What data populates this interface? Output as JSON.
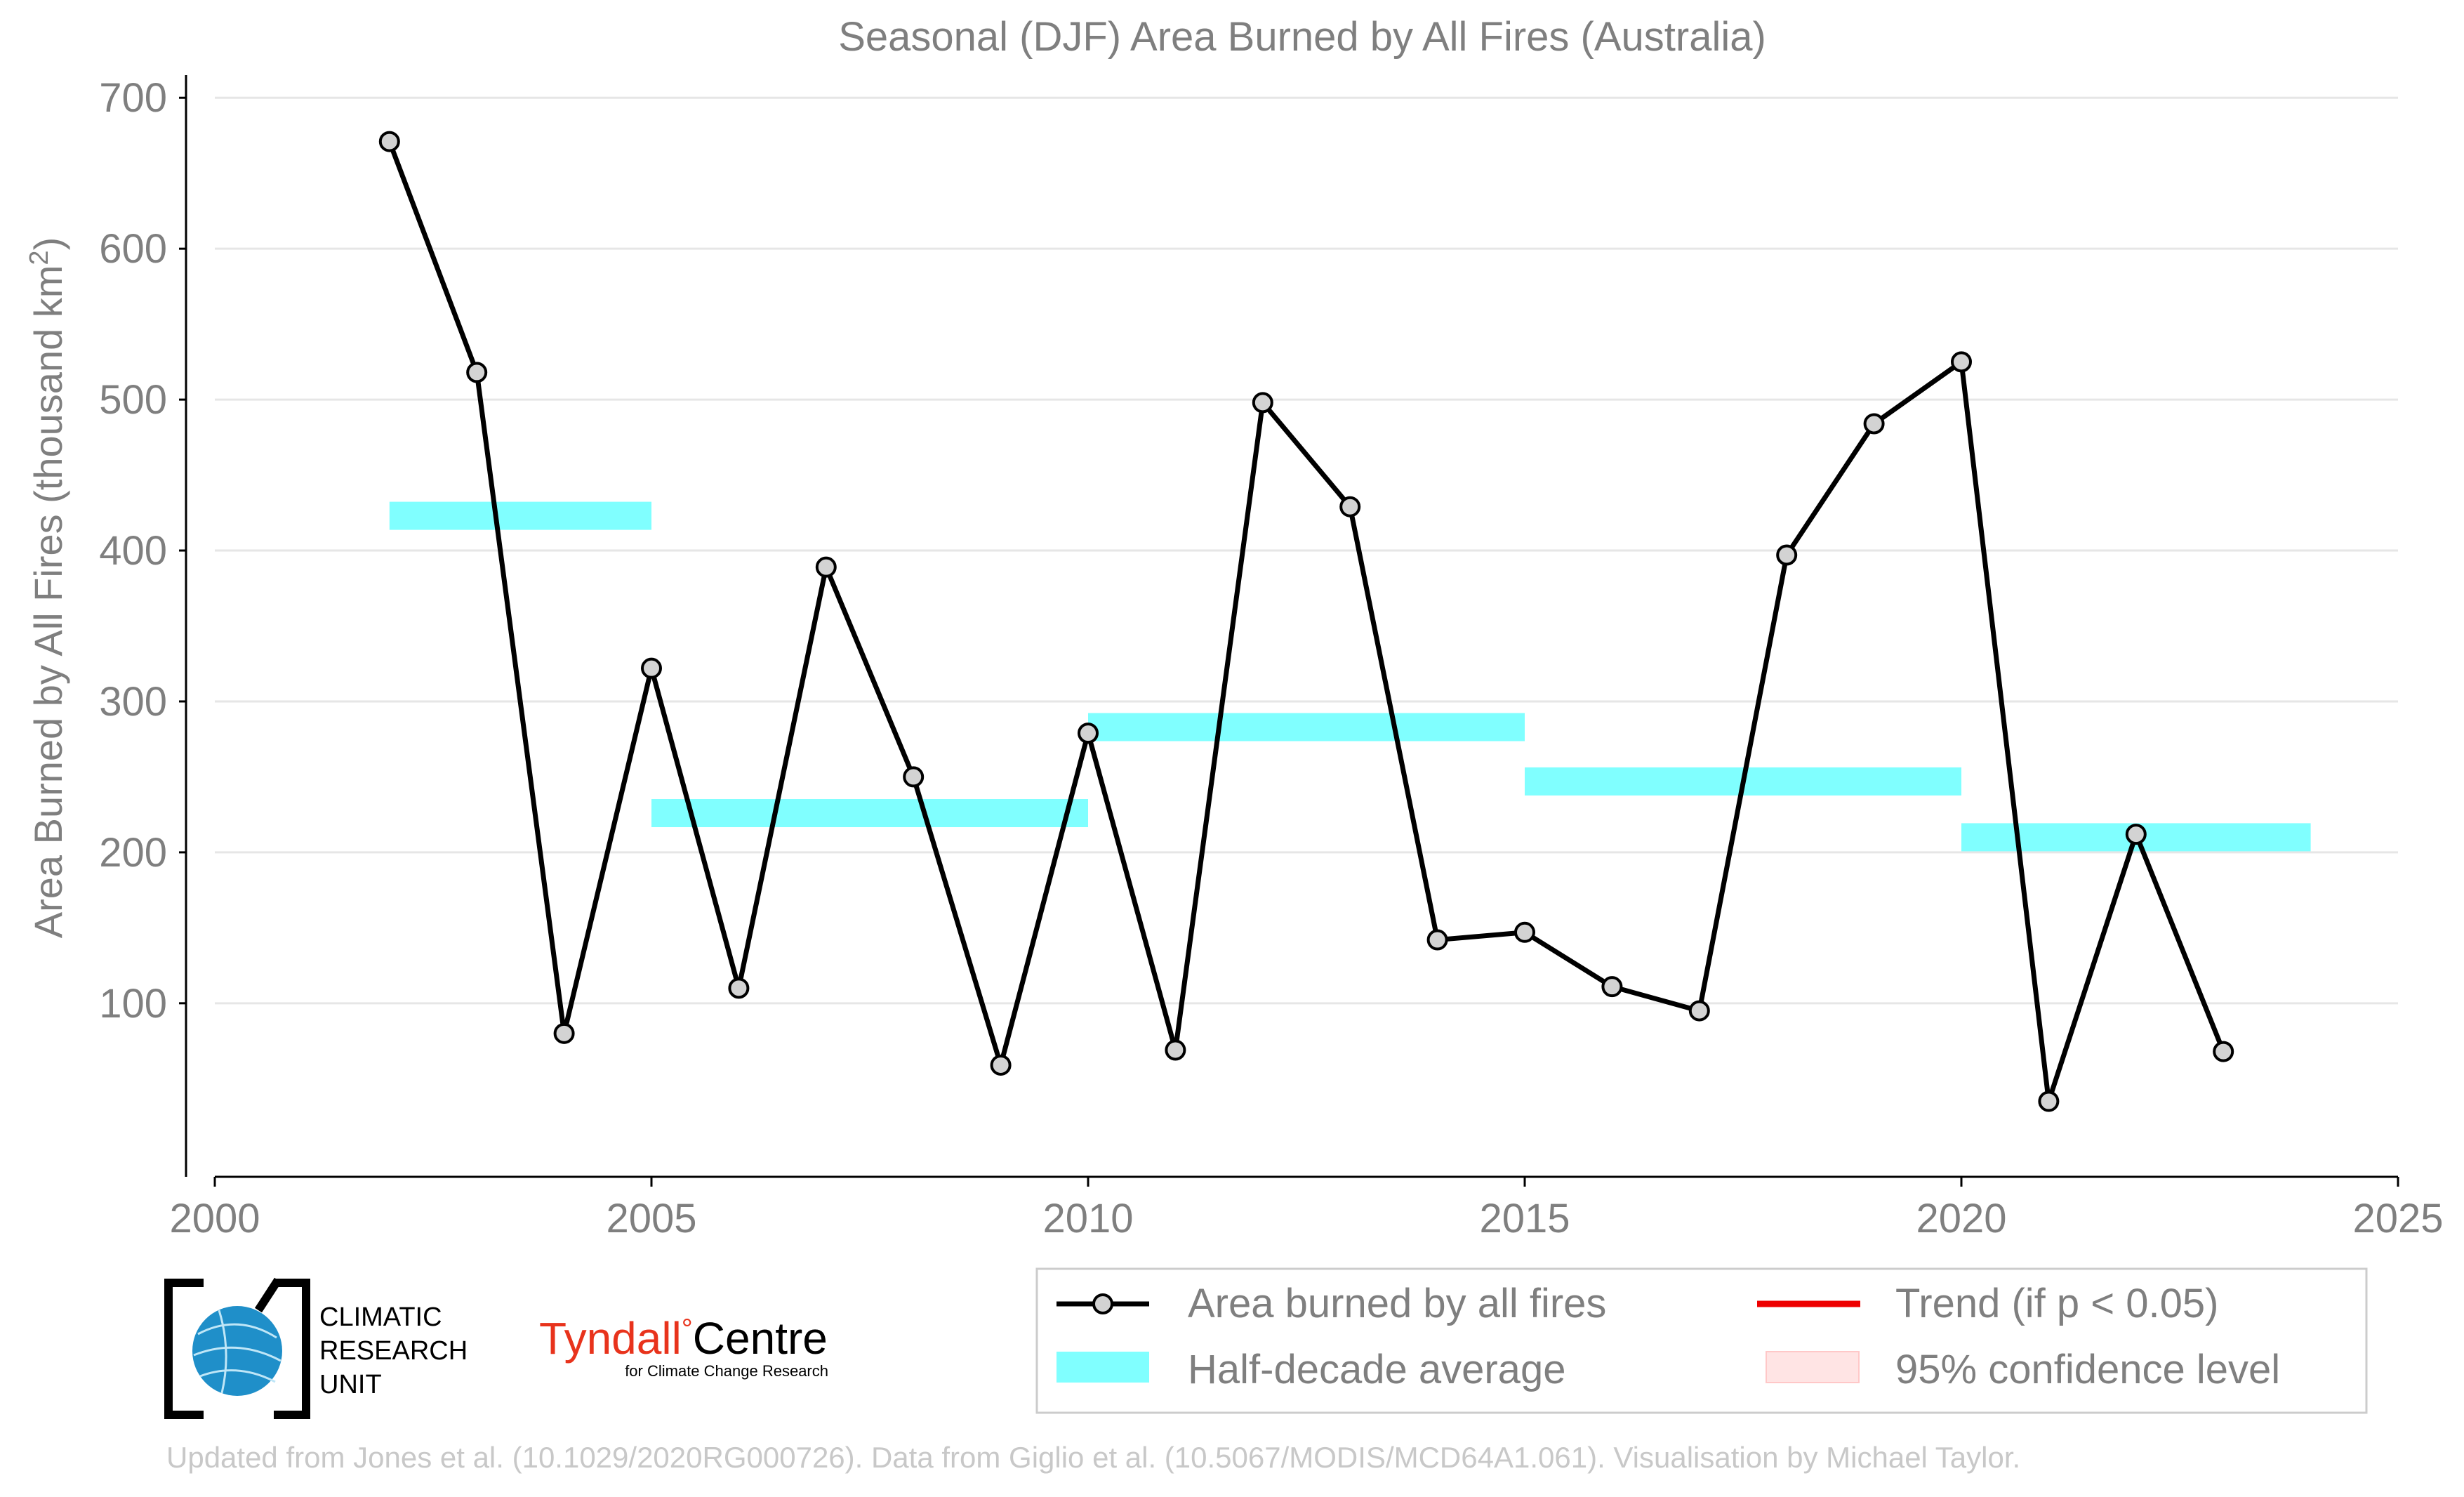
{
  "chart_data": {
    "type": "line",
    "title": "Seasonal (DJF) Area Burned by All Fires (Australia)",
    "ylabel": "Area Burned by All Fires (thousand km",
    "ylabel_superscript": "2",
    "ylabel_suffix": ")",
    "xlabel": "",
    "xlim": [
      2000,
      2025
    ],
    "ylim": [
      -15,
      715
    ],
    "x_ticks": [
      2000,
      2005,
      2010,
      2015,
      2020,
      2025
    ],
    "y_ticks": [
      100,
      200,
      300,
      400,
      500,
      600,
      700
    ],
    "grid": "horizontal",
    "legend_position": "bottom-right",
    "series": [
      {
        "name": "Area burned by all fires",
        "color": "#000000",
        "marker_fill": "#d3d3d3",
        "x": [
          2002,
          2003,
          2004,
          2005,
          2006,
          2007,
          2008,
          2009,
          2010,
          2011,
          2012,
          2013,
          2014,
          2015,
          2016,
          2017,
          2018,
          2019,
          2020,
          2021,
          2022,
          2023
        ],
        "y": [
          671,
          518,
          80,
          322,
          110,
          389,
          250,
          59,
          279,
          69,
          498,
          429,
          142,
          147,
          111,
          95,
          397,
          484,
          525,
          35,
          212,
          68
        ]
      }
    ],
    "half_decade_average": {
      "name": "Half-decade average",
      "color": "#80ffff",
      "segments": [
        {
          "x_start": 2002,
          "x_end": 2005,
          "y": 423
        },
        {
          "x_start": 2005,
          "x_end": 2010,
          "y": 226
        },
        {
          "x_start": 2010,
          "x_end": 2015,
          "y": 283
        },
        {
          "x_start": 2015,
          "x_end": 2020,
          "y": 247
        },
        {
          "x_start": 2020,
          "x_end": 2024,
          "y": 210
        }
      ]
    },
    "legend": [
      {
        "label": "Area burned by all fires",
        "kind": "line-marker",
        "color": "#000000"
      },
      {
        "label": "Trend (if p < 0.05)",
        "kind": "line",
        "color": "#ee0000"
      },
      {
        "label": "Half-decade average",
        "kind": "patch",
        "color": "#80ffff"
      },
      {
        "label": "95% confidence level",
        "kind": "patch",
        "color": "#ffe4e4"
      }
    ]
  },
  "logos": {
    "cru": {
      "line1": "CLIMATIC",
      "line2": "RESEARCH",
      "line3": "UNIT"
    },
    "tyndall": {
      "name": "Tyndall",
      "degree": "°",
      "centre": "Centre",
      "sub": "for Climate Change Research"
    }
  },
  "footer": "Updated from Jones et al. (10.1029/2020RG000726). Data from Giglio et al. (10.5067/MODIS/MCD64A1.061). Visualisation by Michael Taylor.",
  "colors": {
    "text_gray": "#7f7f7f",
    "grid": "#e6e6e6",
    "footer": "#c8c8c8",
    "tyndall_red": "#e8331c"
  }
}
